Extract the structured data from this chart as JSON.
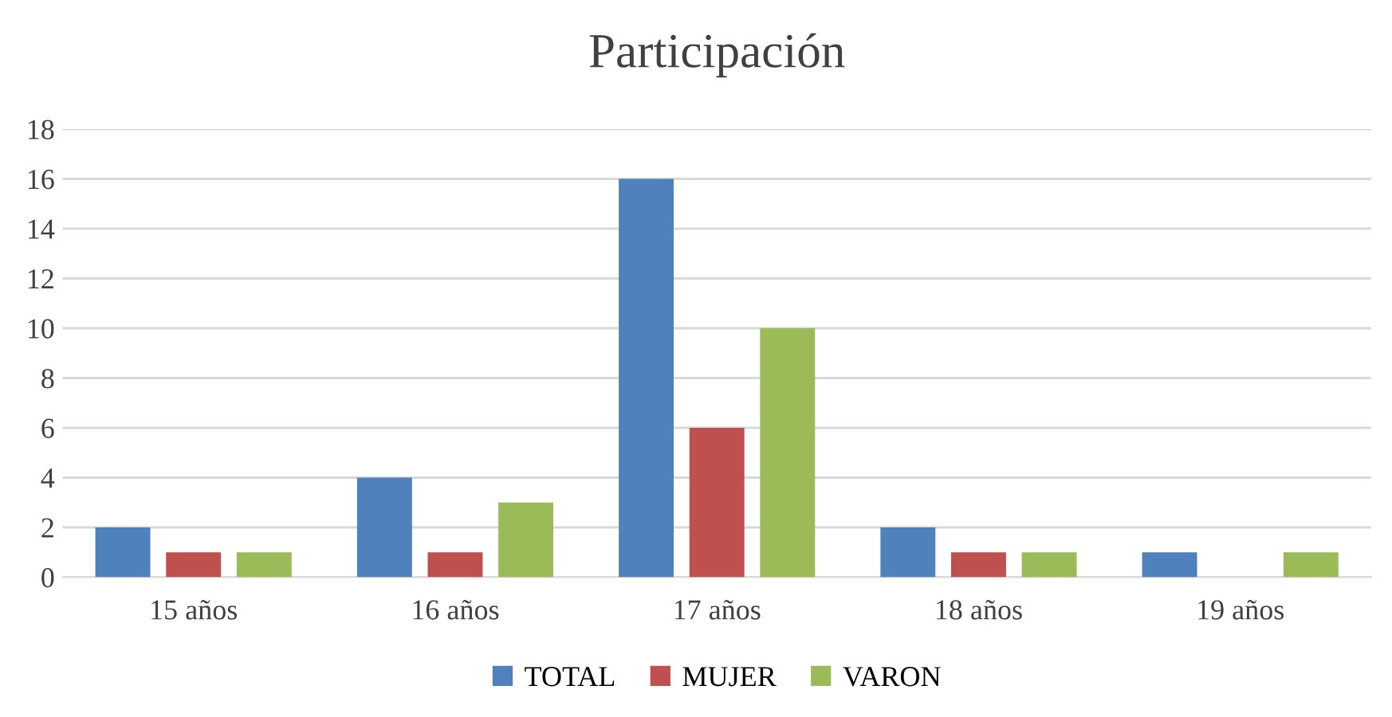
{
  "chart_data": {
    "type": "bar",
    "title": "Participación",
    "categories": [
      "15 años",
      "16 años",
      "17 años",
      "18 años",
      "19 años"
    ],
    "series": [
      {
        "name": "TOTAL",
        "color": "#4f81bd",
        "values": [
          2,
          4,
          16,
          2,
          1
        ]
      },
      {
        "name": "MUJER",
        "color": "#c0504d",
        "values": [
          1,
          1,
          6,
          1,
          0
        ]
      },
      {
        "name": "VARON",
        "color": "#9bbb59",
        "values": [
          1,
          3,
          10,
          1,
          1
        ]
      }
    ],
    "ylim": [
      0,
      18
    ],
    "yticks": [
      0,
      2,
      4,
      6,
      8,
      10,
      12,
      14,
      16,
      18
    ],
    "grid": "y",
    "legend": "bottom"
  }
}
